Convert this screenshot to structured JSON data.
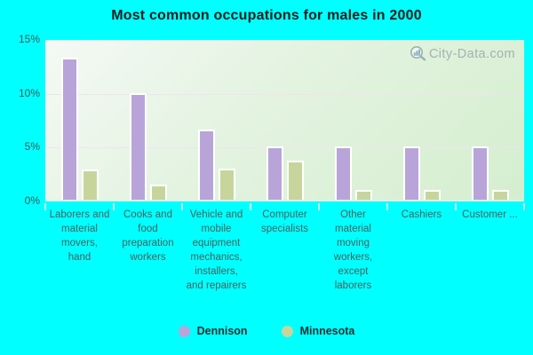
{
  "page": {
    "background": "#00ffff"
  },
  "watermark": {
    "text": "City-Data.com",
    "icon": "magnifier-with-bars",
    "color": "#9aa6ae"
  },
  "chart_data": {
    "type": "bar",
    "title": "Most common occupations for males in 2000",
    "categories": [
      "Laborers and material movers, hand",
      "Cooks and food preparation workers",
      "Vehicle and mobile equipment mechanics, installers, and repairers",
      "Computer specialists",
      "Other material moving workers, except laborers",
      "Cashiers",
      "Customer ..."
    ],
    "series": [
      {
        "name": "Dennison",
        "color": "#b9a4da",
        "values": [
          13.3,
          10.0,
          6.6,
          5.0,
          5.0,
          5.0,
          5.0
        ]
      },
      {
        "name": "Minnesota",
        "color": "#c7d59d",
        "values": [
          2.8,
          1.4,
          2.9,
          3.7,
          0.9,
          0.9,
          0.9
        ]
      }
    ],
    "ylabel": "",
    "xlabel": "",
    "ylim": [
      0,
      15
    ],
    "yticks": {
      "values": [
        15,
        10,
        5,
        0
      ],
      "labels": [
        "15%",
        "10%",
        "5%",
        "0%"
      ]
    },
    "gridline_values": [
      10,
      5
    ],
    "grid": true,
    "legend_position": "bottom",
    "plot_background": [
      "#f4f9f4",
      "#d5eecf"
    ],
    "gridline_color": "#f0e3ee"
  }
}
